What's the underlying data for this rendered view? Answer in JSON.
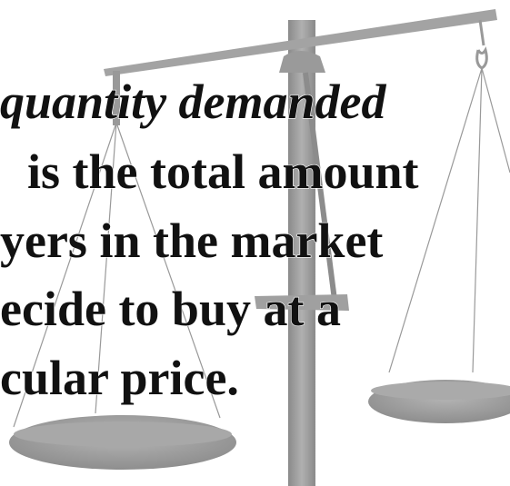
{
  "slide": {
    "lines": [
      "quantity demanded",
      "is the total amount",
      "yers in the market",
      "ecide to buy at a",
      "cular price."
    ]
  }
}
